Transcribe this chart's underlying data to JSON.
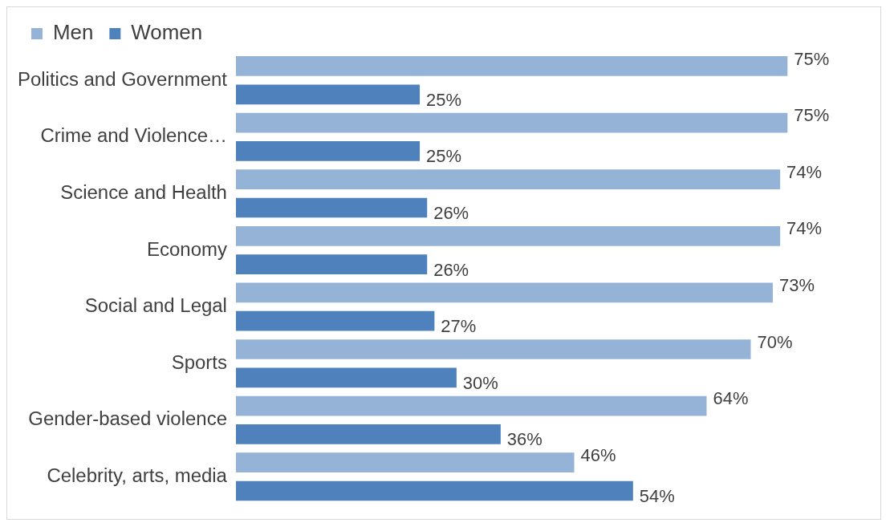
{
  "chart_data": {
    "type": "bar",
    "orientation": "horizontal",
    "legend": "top left",
    "grid": false,
    "tick_labels": "y",
    "categories": [
      "Politics and Government",
      "Crime and Violence…",
      "Science and Health",
      "Economy",
      "Social and Legal",
      "Sports",
      "Gender-based violence",
      "Celebrity, arts, media"
    ],
    "series": [
      {
        "name": "Men",
        "color": "#95b3d7",
        "values": [
          75,
          75,
          74,
          74,
          73,
          70,
          64,
          46
        ],
        "value_labels": [
          "75%",
          "75%",
          "74%",
          "74%",
          "73%",
          "70%",
          "64%",
          "46%"
        ]
      },
      {
        "name": "Women",
        "color": "#4f81bd",
        "values": [
          25,
          25,
          26,
          26,
          27,
          30,
          36,
          54
        ],
        "value_labels": [
          "25%",
          "25%",
          "26%",
          "26%",
          "27%",
          "30%",
          "36%",
          "54%"
        ]
      }
    ]
  }
}
